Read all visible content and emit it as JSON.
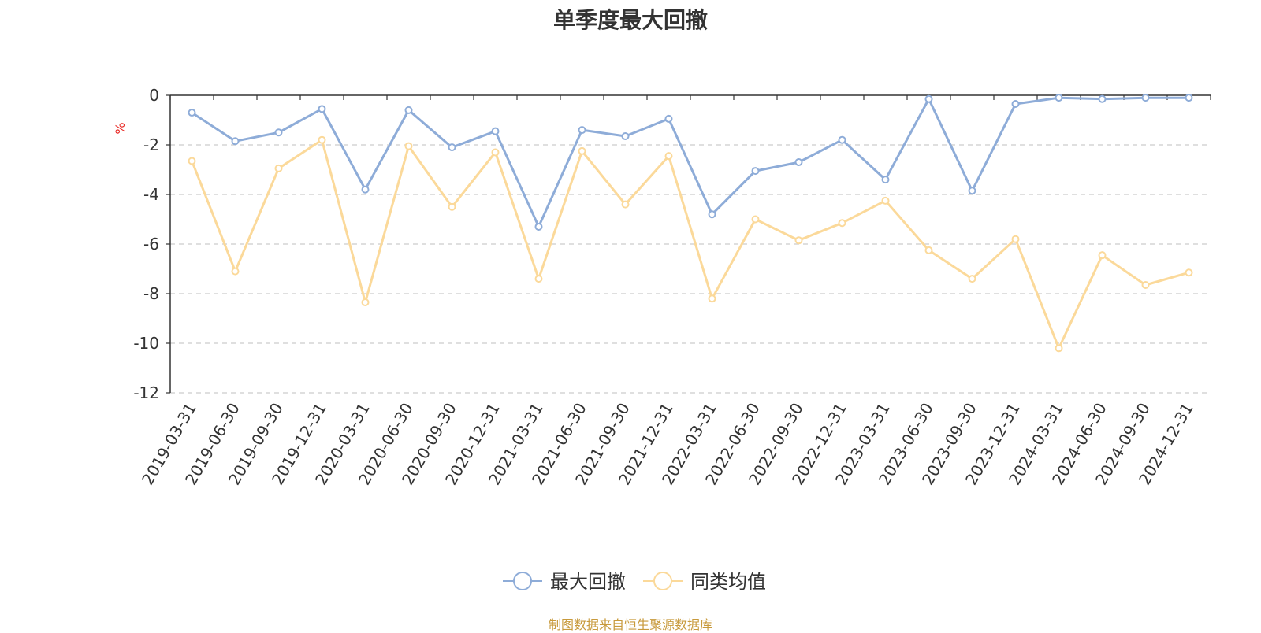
{
  "chart_data": {
    "type": "line",
    "title": "单季度最大回撤",
    "ylabel": "%",
    "ylim": [
      -12,
      0
    ],
    "yticks": [
      0,
      -2,
      -4,
      -6,
      -8,
      -10,
      -12
    ],
    "grid": true,
    "legend_position": "bottom-center",
    "categories": [
      "2019-03-31",
      "2019-06-30",
      "2019-09-30",
      "2019-12-31",
      "2020-03-31",
      "2020-06-30",
      "2020-09-30",
      "2020-12-31",
      "2021-03-31",
      "2021-06-30",
      "2021-09-30",
      "2021-12-31",
      "2022-03-31",
      "2022-06-30",
      "2022-09-30",
      "2022-12-31",
      "2023-03-31",
      "2023-06-30",
      "2023-09-30",
      "2023-12-31",
      "2024-03-31",
      "2024-06-30",
      "2024-09-30",
      "2024-12-31"
    ],
    "series": [
      {
        "name": "最大回撤",
        "color": "#8eacd8",
        "values": [
          -0.7,
          -1.85,
          -1.5,
          -0.55,
          -3.8,
          -0.6,
          -2.1,
          -1.45,
          -5.3,
          -1.4,
          -1.65,
          -0.95,
          -4.8,
          -3.05,
          -2.7,
          -1.8,
          -3.4,
          -0.15,
          -3.85,
          -0.35,
          -0.1,
          -0.15,
          -0.1,
          -0.1
        ]
      },
      {
        "name": "同类均值",
        "color": "#fbd99a",
        "values": [
          -2.65,
          -7.1,
          -2.95,
          -1.8,
          -8.35,
          -2.05,
          -4.5,
          -2.3,
          -7.4,
          -2.25,
          -4.4,
          -2.45,
          -8.2,
          -5.0,
          -5.85,
          -5.15,
          -4.25,
          -6.25,
          -7.4,
          -5.8,
          -10.2,
          -6.45,
          -7.65,
          -7.15
        ]
      }
    ]
  },
  "source_note": "制图数据来自恒生聚源数据库"
}
